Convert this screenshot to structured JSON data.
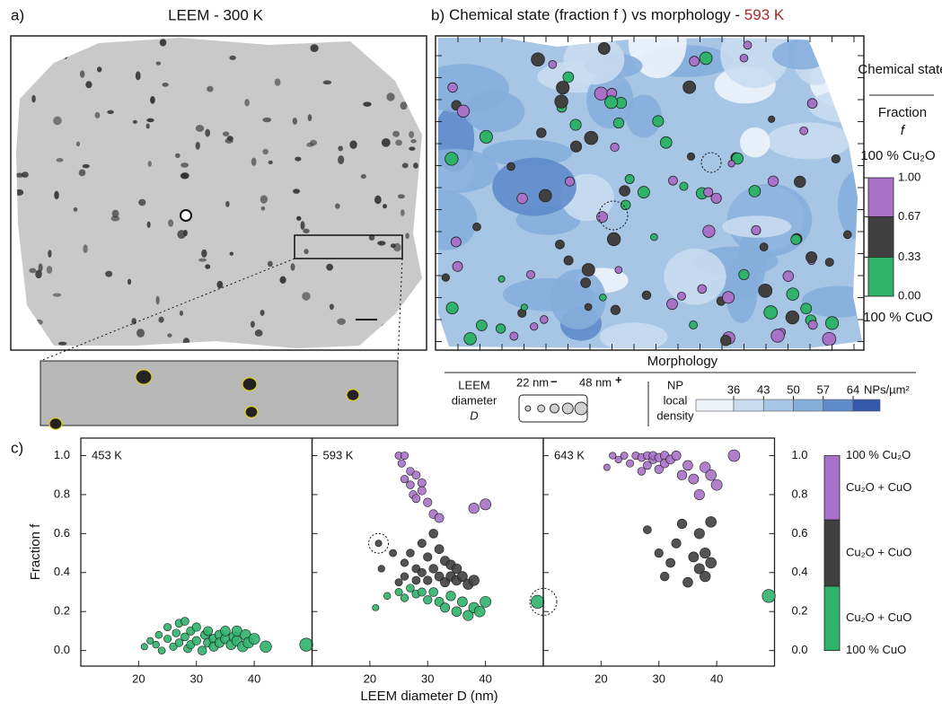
{
  "panel_a": {
    "label": "a)",
    "title": "LEEM - 300 K"
  },
  "panel_b": {
    "label": "b)",
    "title": "Chemical state (fraction f ) vs morphology - ",
    "title_temp": "593 K",
    "legend_title": "Chemical state",
    "fraction_label": "Fraction",
    "fraction_symbol": "f",
    "top_label": "100 % Cu₂O",
    "bottom_label": "100 % CuO",
    "colorbar": {
      "ticks": [
        {
          "value": 1,
          "label": "1.00"
        },
        {
          "value": 0.67,
          "label": "0.67"
        },
        {
          "value": 0.33,
          "label": "0.33"
        },
        {
          "value": 0,
          "label": "0.00"
        }
      ],
      "colors": [
        "#a872c8",
        "#404040",
        "#2fb36b"
      ]
    },
    "morphology_title": "Morphology",
    "diameter_label": [
      "LEEM",
      "diameter",
      "D"
    ],
    "size_min": "22 nm",
    "size_max": "48 nm",
    "minus_mark": "−",
    "plus_mark": "+",
    "density_label": [
      "NP",
      "local",
      "density"
    ],
    "density_ticks": [
      36,
      43,
      50,
      57,
      64
    ],
    "density_unit": "NPs/µm²",
    "density_colors": [
      "#eef3f9",
      "#c9dcef",
      "#a7c6e6",
      "#86aedb",
      "#5f8bcb",
      "#3559aa"
    ]
  },
  "panel_c": {
    "label": "c)",
    "ylabel": "Fraction f",
    "xlabel": "LEEM diameter D (nm)",
    "colorbar_labels": [
      "100 % Cu₂O",
      "Cu₂O + CuO",
      "Cu₂O + CuO",
      "Cu₂O + CuO",
      "100 % CuO"
    ],
    "colorbar_label_colors": [
      "#a872c8",
      "#a872c8",
      "#333333",
      "#2fb36b",
      "#2fb36b"
    ]
  },
  "chart_data": [
    {
      "type": "scatter",
      "title": "453 K",
      "title_color": "#111111",
      "xlim": [
        10,
        50
      ],
      "ylim": [
        -0.08,
        1.09
      ],
      "xticks": [
        20,
        30,
        40
      ],
      "yticks": [
        {
          "value": 0,
          "label": "0.0"
        },
        {
          "value": 0.2,
          "label": "0.2"
        },
        {
          "value": 0.4,
          "label": "0.4"
        },
        {
          "value": 0.6,
          "label": "0.6"
        },
        {
          "value": 0.8,
          "label": "0.8"
        },
        {
          "value": 1,
          "label": "1.0"
        }
      ],
      "series": [
        {
          "color": "#2fb36b",
          "x": [
            21,
            22,
            23,
            23.5,
            24,
            25,
            25,
            26,
            26.5,
            27,
            27,
            28,
            28,
            28.5,
            29,
            29,
            30,
            30,
            31,
            31.5,
            32,
            32,
            33,
            33,
            34,
            34,
            35,
            35,
            36,
            36.5,
            37,
            37,
            38,
            38.5,
            39,
            40,
            42,
            49
          ],
          "values": [
            0.02,
            0.05,
            0.03,
            0.08,
            0.0,
            0.06,
            0.12,
            0.02,
            0.09,
            0.14,
            0.04,
            0.07,
            0.15,
            0.01,
            0.1,
            0.03,
            0.05,
            0.12,
            0.0,
            0.08,
            0.04,
            0.1,
            0.06,
            0.02,
            0.08,
            0.04,
            0.06,
            0.1,
            0.03,
            0.07,
            0.05,
            0.1,
            0.02,
            0.08,
            0.04,
            0.06,
            0.02,
            0.03
          ]
        }
      ]
    },
    {
      "type": "scatter",
      "title": "593 K",
      "title_color": "#a52a2a",
      "xlim": [
        10,
        50
      ],
      "ylim": [
        -0.08,
        1.09
      ],
      "xticks": [
        20,
        30,
        40
      ],
      "yticks": [
        {
          "value": 0,
          "label": "0.0"
        },
        {
          "value": 0.2,
          "label": "0.2"
        },
        {
          "value": 0.4,
          "label": "0.4"
        },
        {
          "value": 0.6,
          "label": "0.6"
        },
        {
          "value": 0.8,
          "label": "0.8"
        },
        {
          "value": 1,
          "label": "1.0"
        }
      ],
      "series": [
        {
          "color": "#a872c8",
          "x": [
            25,
            25.5,
            26,
            26,
            27,
            27,
            27.5,
            28,
            28,
            29,
            29,
            30,
            31,
            32,
            38,
            40
          ],
          "values": [
            1.0,
            0.96,
            1.0,
            0.88,
            0.92,
            0.85,
            0.8,
            0.9,
            0.78,
            0.86,
            0.82,
            0.76,
            0.7,
            0.68,
            0.73,
            0.75
          ]
        },
        {
          "color": "#404040",
          "x": [
            21.5,
            22,
            24,
            25,
            26,
            26,
            27,
            28,
            28,
            29,
            29,
            30,
            30,
            31,
            31,
            32,
            32,
            33,
            33,
            34,
            34,
            35,
            35,
            36,
            37,
            38
          ],
          "values": [
            0.55,
            0.42,
            0.5,
            0.35,
            0.45,
            0.38,
            0.5,
            0.42,
            0.36,
            0.55,
            0.4,
            0.48,
            0.36,
            0.6,
            0.42,
            0.52,
            0.38,
            0.46,
            0.35,
            0.44,
            0.38,
            0.42,
            0.36,
            0.38,
            0.34,
            0.36
          ]
        },
        {
          "color": "#2fb36b",
          "x": [
            21,
            23,
            25,
            26,
            27,
            28,
            29,
            30,
            31,
            32,
            33,
            34,
            35,
            36,
            37,
            38,
            39,
            40,
            49
          ],
          "values": [
            0.22,
            0.28,
            0.3,
            0.27,
            0.32,
            0.29,
            0.3,
            0.26,
            0.3,
            0.25,
            0.22,
            0.28,
            0.2,
            0.25,
            0.18,
            0.22,
            0.2,
            0.25,
            0.25
          ]
        }
      ]
    },
    {
      "type": "scatter",
      "title": "643 K",
      "title_color": "#111111",
      "xlim": [
        10,
        50
      ],
      "ylim": [
        -0.08,
        1.09
      ],
      "xticks": [
        20,
        30,
        40
      ],
      "yticks": [
        {
          "value": 0,
          "label": "0.0"
        },
        {
          "value": 0.2,
          "label": "0.2"
        },
        {
          "value": 0.4,
          "label": "0.4"
        },
        {
          "value": 0.6,
          "label": "0.6"
        },
        {
          "value": 0.8,
          "label": "0.8"
        },
        {
          "value": 1,
          "label": "1.0"
        }
      ],
      "series": [
        {
          "color": "#a872c8",
          "x": [
            21,
            22,
            23,
            24,
            25,
            26,
            27,
            27,
            28,
            28,
            29,
            29,
            30,
            30,
            31,
            31,
            32,
            33,
            34,
            35,
            36,
            37,
            38,
            39,
            40,
            43
          ],
          "values": [
            0.94,
            1.0,
            0.98,
            1.0,
            0.96,
            1.0,
            0.92,
            0.99,
            1.0,
            0.95,
            0.98,
            1.0,
            0.99,
            0.93,
            1.0,
            0.96,
            0.98,
            1.0,
            0.9,
            0.95,
            0.88,
            0.8,
            0.94,
            0.9,
            0.85,
            1.0
          ]
        },
        {
          "color": "#404040",
          "x": [
            28,
            30,
            31,
            32,
            33,
            34,
            35,
            36,
            37,
            37,
            38,
            38,
            39,
            39
          ],
          "values": [
            0.62,
            0.5,
            0.38,
            0.45,
            0.55,
            0.65,
            0.35,
            0.48,
            0.42,
            0.6,
            0.38,
            0.5,
            0.45,
            0.66
          ]
        },
        {
          "color": "#2fb36b",
          "x": [
            49
          ],
          "values": [
            0.28
          ]
        }
      ]
    }
  ]
}
